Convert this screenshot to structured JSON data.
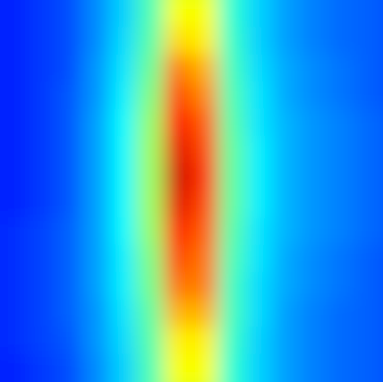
{
  "chart_data": {
    "type": "heatmap",
    "tick_labels": false,
    "color": "jet",
    "zlim": [
      0,
      1
    ],
    "cells": [
      [
        0.15,
        0.16,
        0.18,
        0.2,
        0.26,
        0.33,
        0.45,
        0.6,
        0.6,
        0.42,
        0.33,
        0.28,
        0.25,
        0.23,
        0.22,
        0.2
      ],
      [
        0.15,
        0.16,
        0.18,
        0.2,
        0.26,
        0.33,
        0.45,
        0.62,
        0.62,
        0.42,
        0.33,
        0.28,
        0.25,
        0.23,
        0.22,
        0.2
      ],
      [
        0.15,
        0.16,
        0.18,
        0.2,
        0.26,
        0.34,
        0.46,
        0.66,
        0.64,
        0.43,
        0.33,
        0.28,
        0.25,
        0.23,
        0.22,
        0.2
      ],
      [
        0.15,
        0.16,
        0.18,
        0.2,
        0.27,
        0.35,
        0.48,
        0.75,
        0.7,
        0.44,
        0.34,
        0.29,
        0.26,
        0.24,
        0.22,
        0.2
      ],
      [
        0.15,
        0.16,
        0.18,
        0.21,
        0.27,
        0.36,
        0.5,
        0.8,
        0.74,
        0.45,
        0.35,
        0.29,
        0.26,
        0.24,
        0.22,
        0.2
      ],
      [
        0.15,
        0.16,
        0.18,
        0.21,
        0.28,
        0.37,
        0.52,
        0.86,
        0.78,
        0.46,
        0.35,
        0.3,
        0.27,
        0.25,
        0.23,
        0.21
      ],
      [
        0.15,
        0.16,
        0.18,
        0.21,
        0.28,
        0.37,
        0.53,
        0.9,
        0.8,
        0.47,
        0.36,
        0.3,
        0.27,
        0.25,
        0.23,
        0.21
      ],
      [
        0.15,
        0.16,
        0.18,
        0.21,
        0.28,
        0.37,
        0.53,
        0.92,
        0.82,
        0.47,
        0.36,
        0.3,
        0.27,
        0.25,
        0.23,
        0.21
      ],
      [
        0.15,
        0.16,
        0.18,
        0.21,
        0.28,
        0.37,
        0.53,
        0.9,
        0.8,
        0.47,
        0.36,
        0.3,
        0.27,
        0.25,
        0.23,
        0.21
      ],
      [
        0.16,
        0.17,
        0.19,
        0.22,
        0.28,
        0.37,
        0.52,
        0.84,
        0.78,
        0.46,
        0.35,
        0.3,
        0.27,
        0.25,
        0.23,
        0.21
      ],
      [
        0.16,
        0.17,
        0.19,
        0.22,
        0.28,
        0.36,
        0.5,
        0.8,
        0.76,
        0.45,
        0.35,
        0.29,
        0.26,
        0.24,
        0.22,
        0.2
      ],
      [
        0.16,
        0.17,
        0.19,
        0.22,
        0.28,
        0.36,
        0.49,
        0.76,
        0.75,
        0.44,
        0.34,
        0.29,
        0.26,
        0.24,
        0.22,
        0.2
      ],
      [
        0.16,
        0.17,
        0.19,
        0.22,
        0.27,
        0.35,
        0.47,
        0.7,
        0.7,
        0.44,
        0.34,
        0.28,
        0.25,
        0.23,
        0.22,
        0.2
      ],
      [
        0.16,
        0.17,
        0.19,
        0.21,
        0.27,
        0.34,
        0.46,
        0.64,
        0.64,
        0.43,
        0.33,
        0.28,
        0.25,
        0.23,
        0.22,
        0.2
      ],
      [
        0.15,
        0.16,
        0.18,
        0.2,
        0.26,
        0.33,
        0.45,
        0.62,
        0.62,
        0.42,
        0.33,
        0.28,
        0.25,
        0.23,
        0.22,
        0.2
      ],
      [
        0.15,
        0.16,
        0.18,
        0.2,
        0.26,
        0.33,
        0.45,
        0.6,
        0.6,
        0.42,
        0.33,
        0.28,
        0.25,
        0.23,
        0.22,
        0.2
      ]
    ]
  }
}
